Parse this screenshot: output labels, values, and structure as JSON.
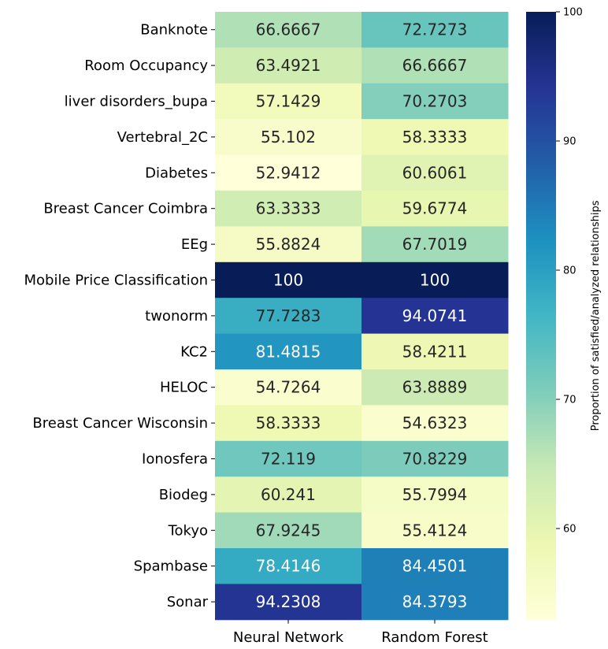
{
  "chart_data": {
    "type": "heatmap",
    "title": "",
    "rows": [
      "Banknote",
      "Room Occupancy",
      "liver disorders_bupa",
      "Vertebral_2C",
      "Diabetes",
      "Breast Cancer Coimbra",
      "EEg",
      "Mobile Price Classification",
      "twonorm",
      "KC2",
      "HELOC",
      "Breast Cancer Wisconsin",
      "Ionosfera",
      "Biodeg",
      "Tokyo",
      "Spambase",
      "Sonar"
    ],
    "columns": [
      "Neural Network",
      "Random Forest"
    ],
    "values": [
      [
        66.6667,
        72.7273
      ],
      [
        63.4921,
        66.6667
      ],
      [
        57.1429,
        70.2703
      ],
      [
        55.102,
        58.3333
      ],
      [
        52.9412,
        60.6061
      ],
      [
        63.3333,
        59.6774
      ],
      [
        55.8824,
        67.7019
      ],
      [
        100,
        100
      ],
      [
        77.7283,
        94.0741
      ],
      [
        81.4815,
        58.4211
      ],
      [
        54.7264,
        63.8889
      ],
      [
        58.3333,
        54.6323
      ],
      [
        72.119,
        70.8229
      ],
      [
        60.241,
        55.7994
      ],
      [
        67.9245,
        55.4124
      ],
      [
        78.4146,
        84.4501
      ],
      [
        94.2308,
        84.3793
      ]
    ],
    "value_labels": [
      [
        "66.6667",
        "72.7273"
      ],
      [
        "63.4921",
        "66.6667"
      ],
      [
        "57.1429",
        "70.2703"
      ],
      [
        "55.102",
        "58.3333"
      ],
      [
        "52.9412",
        "60.6061"
      ],
      [
        "63.3333",
        "59.6774"
      ],
      [
        "55.8824",
        "67.7019"
      ],
      [
        "100",
        "100"
      ],
      [
        "77.7283",
        "94.0741"
      ],
      [
        "81.4815",
        "58.4211"
      ],
      [
        "54.7264",
        "63.8889"
      ],
      [
        "58.3333",
        "54.6323"
      ],
      [
        "72.119",
        "70.8229"
      ],
      [
        "60.241",
        "55.7994"
      ],
      [
        "67.9245",
        "55.4124"
      ],
      [
        "78.4146",
        "84.4501"
      ],
      [
        "94.2308",
        "84.3793"
      ]
    ],
    "colorbar": {
      "label": "Proportion of satisfied/analyzed relationships",
      "range": [
        52.9412,
        100
      ],
      "ticks": [
        60,
        70,
        80,
        90,
        100
      ],
      "colormap": "YlGnBu"
    }
  }
}
